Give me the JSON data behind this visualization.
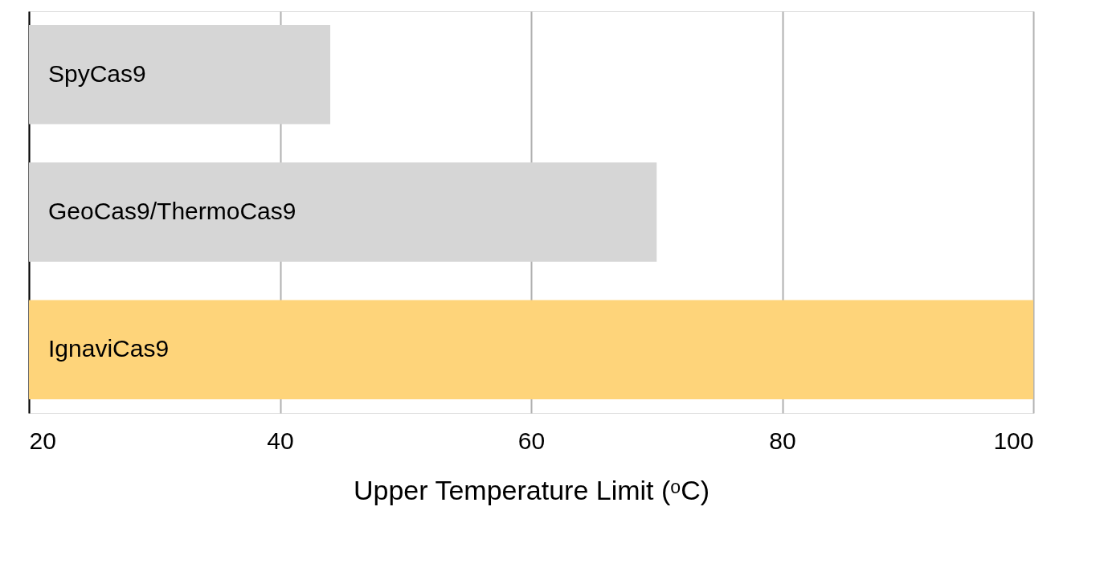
{
  "chart_data": {
    "type": "bar",
    "orientation": "horizontal",
    "categories": [
      "SpyCas9",
      "GeoCas9/ThermoCas9",
      "IgnaviCas9"
    ],
    "values": [
      44,
      70,
      100
    ],
    "colors": [
      "#d6d6d6",
      "#d6d6d6",
      "#fed47a"
    ],
    "xlabel": "Upper Temperature Limit (ᵒC)",
    "xlim": [
      20,
      100
    ],
    "xticks": [
      20,
      40,
      60,
      80,
      100
    ],
    "grid": "x"
  }
}
